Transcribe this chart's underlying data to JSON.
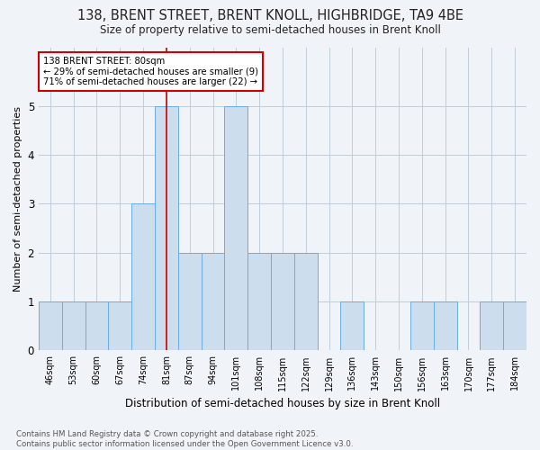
{
  "title_line1": "138, BRENT STREET, BRENT KNOLL, HIGHBRIDGE, TA9 4BE",
  "title_line2": "Size of property relative to semi-detached houses in Brent Knoll",
  "xlabel": "Distribution of semi-detached houses by size in Brent Knoll",
  "ylabel": "Number of semi-detached properties",
  "categories": [
    "46sqm",
    "53sqm",
    "60sqm",
    "67sqm",
    "74sqm",
    "81sqm",
    "87sqm",
    "94sqm",
    "101sqm",
    "108sqm",
    "115sqm",
    "122sqm",
    "129sqm",
    "136sqm",
    "143sqm",
    "150sqm",
    "156sqm",
    "163sqm",
    "170sqm",
    "177sqm",
    "184sqm"
  ],
  "values": [
    1,
    1,
    1,
    1,
    3,
    5,
    2,
    2,
    5,
    2,
    2,
    2,
    0,
    1,
    0,
    0,
    1,
    1,
    0,
    1,
    1
  ],
  "highlight_index": 5,
  "bar_color": "#ccdded",
  "bar_edge_color": "#6aade4",
  "highlight_line_color": "#cc0000",
  "annotation_box_edge": "#cc0000",
  "annotation_line1": "138 BRENT STREET: 80sqm",
  "annotation_line2": "← 29% of semi-detached houses are smaller (9)",
  "annotation_line3": "71% of semi-detached houses are larger (22) →",
  "footer1": "Contains HM Land Registry data © Crown copyright and database right 2025.",
  "footer2": "Contains public sector information licensed under the Open Government Licence v3.0.",
  "ylim": [
    0,
    6.2
  ],
  "yticks": [
    0,
    1,
    2,
    3,
    4,
    5
  ],
  "background_color": "#f0f4f8",
  "grid_color": "#c0ccd8"
}
